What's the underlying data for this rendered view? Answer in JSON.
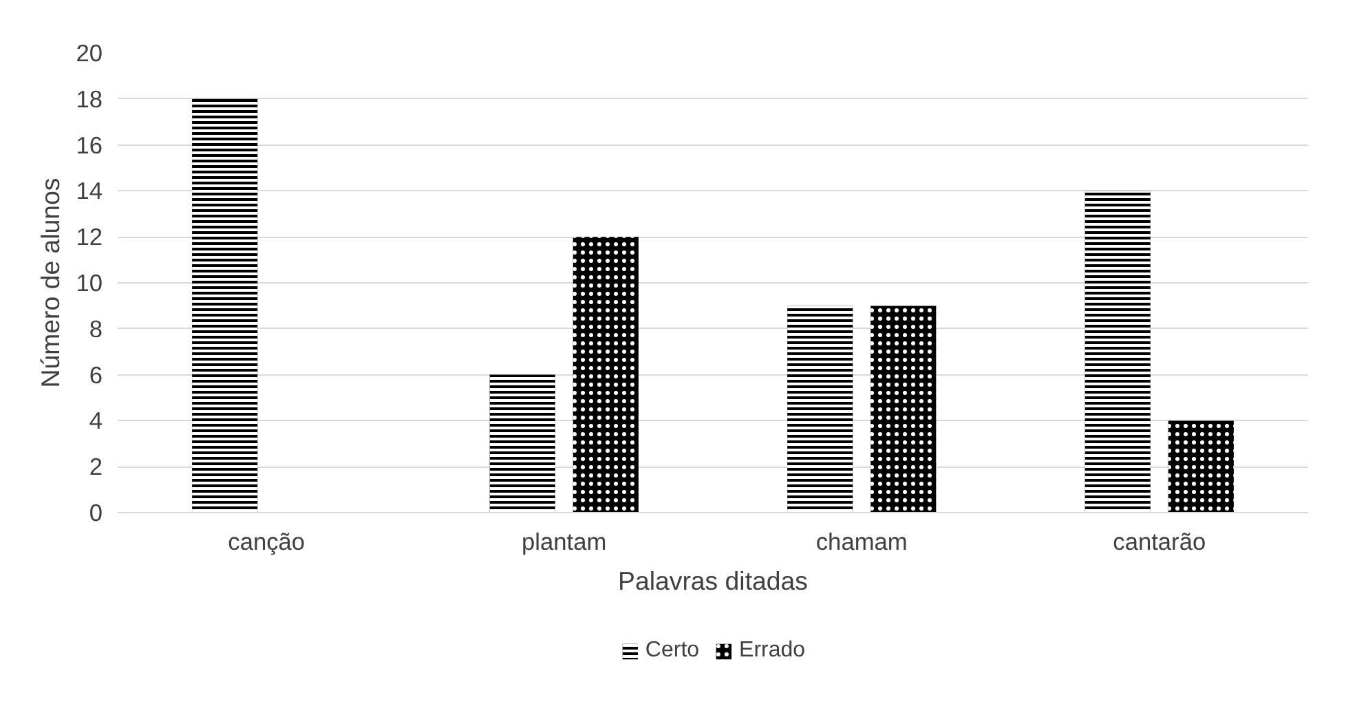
{
  "chart_data": {
    "type": "bar",
    "xlabel": "Palavras ditadas",
    "ylabel": "Número de alunos",
    "categories": [
      "canção",
      "plantam",
      "chamam",
      "cantarão"
    ],
    "series": [
      {
        "name": "Certo",
        "color": "#000000",
        "values": [
          18,
          6,
          9,
          14
        ]
      },
      {
        "name": "Errado",
        "color": "#000000",
        "values": [
          0,
          12,
          9,
          4
        ]
      }
    ],
    "ylim": [
      0,
      20
    ],
    "yticks": [
      0,
      2,
      4,
      6,
      8,
      10,
      12,
      14,
      16,
      18,
      20
    ],
    "grid": "y",
    "legend": "bottom"
  }
}
